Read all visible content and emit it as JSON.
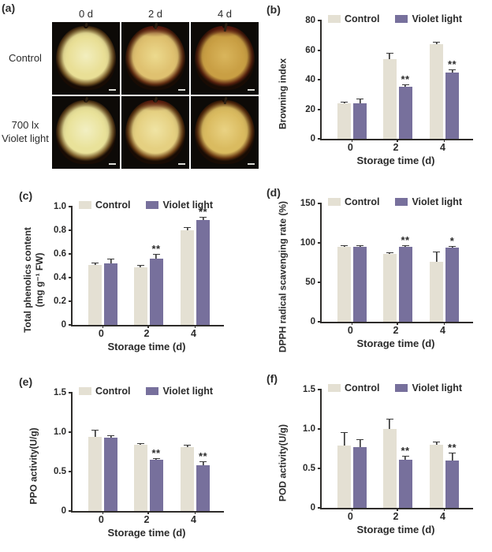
{
  "colors": {
    "control": "#e4e0d3",
    "violet": "#77709c",
    "axis": "#2e2c2a",
    "error_bar": "#3a3a3a",
    "photo_background": "#0d0a07"
  },
  "panel_a": {
    "label": "(a)",
    "col_headers": [
      "0 d",
      "2 d",
      "4 d"
    ],
    "rows": [
      {
        "label_lines": [
          "Control"
        ]
      },
      {
        "label_lines": [
          "700 lx",
          "Violet light"
        ]
      }
    ],
    "photos": [
      {
        "name": "control-0d",
        "flesh": "#f2eebe",
        "mid": "#e9df96",
        "skin": "#7c5c28",
        "stem": 5,
        "red_top": false
      },
      {
        "name": "control-2d",
        "flesh": "#ecda8e",
        "mid": "#dfc170",
        "skin": "#6e3415",
        "stem": 8,
        "red_top": true
      },
      {
        "name": "control-4d",
        "flesh": "#d9b55c",
        "mid": "#c99f44",
        "skin": "#5f2410",
        "stem": 11,
        "red_top": true
      },
      {
        "name": "violet-0d",
        "flesh": "#f2efc2",
        "mid": "#e9e29a",
        "skin": "#7c5c28",
        "stem": 7,
        "red_top": false
      },
      {
        "name": "violet-2d",
        "flesh": "#f0e4a4",
        "mid": "#e5d081",
        "skin": "#774818",
        "stem": 7,
        "red_top": true
      },
      {
        "name": "violet-4d",
        "flesh": "#e9d283",
        "mid": "#dabb60",
        "skin": "#693610",
        "stem": 9,
        "red_top": false
      }
    ],
    "has_scale_bars": true
  },
  "chart_data": [
    {
      "id": "b",
      "panel_label": "(b)",
      "type": "bar",
      "ylabel": "Browning index",
      "xlabel": "Storage time (d)",
      "categories": [
        "0",
        "2",
        "4"
      ],
      "ylim": [
        0,
        80
      ],
      "yticks": [
        0,
        20,
        40,
        60,
        80
      ],
      "ytick_labels": [
        "0",
        "20",
        "40",
        "60",
        "80"
      ],
      "legend_position": "top",
      "series": [
        {
          "name": "Control",
          "values": [
            24,
            54,
            64
          ],
          "errors": [
            0.6,
            3.5,
            1.2
          ]
        },
        {
          "name": "Violet light",
          "values": [
            24,
            35,
            45
          ],
          "errors": [
            2.8,
            1.5,
            1.5
          ]
        }
      ],
      "significance": [
        "",
        "**",
        "**"
      ]
    },
    {
      "id": "c",
      "panel_label": "(c)",
      "type": "bar",
      "ylabel": "Total phenolics content",
      "ylabel2": "(mg g⁻¹ FW)",
      "xlabel": "Storage time (d)",
      "categories": [
        "0",
        "2",
        "4"
      ],
      "ylim": [
        0,
        1.0
      ],
      "yticks": [
        0,
        0.2,
        0.4,
        0.6,
        0.8,
        1.0
      ],
      "ytick_labels": [
        "0",
        "0.2",
        "0.4",
        "0.6",
        "0.8",
        "1.0"
      ],
      "legend_position": "top",
      "series": [
        {
          "name": "Control",
          "values": [
            0.51,
            0.49,
            0.8
          ],
          "errors": [
            0.012,
            0.012,
            0.02
          ]
        },
        {
          "name": "Violet light",
          "values": [
            0.52,
            0.56,
            0.89
          ],
          "errors": [
            0.035,
            0.035,
            0.015
          ]
        }
      ],
      "significance": [
        "",
        "**",
        "**"
      ]
    },
    {
      "id": "d",
      "panel_label": "(d)",
      "type": "bar",
      "ylabel": "DPPH radical scavenging rate (%)",
      "xlabel": "Storage time (d)",
      "categories": [
        "0",
        "2",
        "4"
      ],
      "ylim": [
        0,
        150
      ],
      "yticks": [
        0,
        50,
        100,
        150
      ],
      "ytick_labels": [
        "0",
        "50",
        "100",
        "150"
      ],
      "legend_position": "top",
      "series": [
        {
          "name": "Control",
          "values": [
            95,
            86,
            76
          ],
          "errors": [
            1.5,
            1.5,
            12
          ]
        },
        {
          "name": "Violet light",
          "values": [
            95,
            95,
            94
          ],
          "errors": [
            1.5,
            1.5,
            1.5
          ]
        }
      ],
      "significance": [
        "",
        "**",
        "*"
      ]
    },
    {
      "id": "e",
      "panel_label": "(e)",
      "type": "bar",
      "ylabel": "PPO activity(U/g)",
      "xlabel": "Storage time (d)",
      "categories": [
        "0",
        "2",
        "4"
      ],
      "ylim": [
        0,
        1.5
      ],
      "yticks": [
        0,
        0.5,
        1.0,
        1.5
      ],
      "ytick_labels": [
        "0",
        "0.5",
        "1.0",
        "1.5"
      ],
      "legend_position": "top",
      "series": [
        {
          "name": "Control",
          "values": [
            0.94,
            0.84,
            0.81
          ],
          "errors": [
            0.08,
            0.015,
            0.02
          ]
        },
        {
          "name": "Violet light",
          "values": [
            0.93,
            0.65,
            0.58
          ],
          "errors": [
            0.02,
            0.012,
            0.04
          ]
        }
      ],
      "significance": [
        "",
        "**",
        "**"
      ]
    },
    {
      "id": "f",
      "panel_label": "(f)",
      "type": "bar",
      "ylabel": "POD activity(U/g)",
      "xlabel": "Storage time (d)",
      "categories": [
        "0",
        "2",
        "4"
      ],
      "ylim": [
        0,
        1.5
      ],
      "yticks": [
        0,
        0.5,
        1.0,
        1.5
      ],
      "ytick_labels": [
        "0",
        "0.5",
        "1.0",
        "1.5"
      ],
      "legend_position": "top",
      "series": [
        {
          "name": "Control",
          "values": [
            0.79,
            1.0,
            0.8
          ],
          "errors": [
            0.16,
            0.12,
            0.03
          ]
        },
        {
          "name": "Violet light",
          "values": [
            0.77,
            0.61,
            0.6
          ],
          "errors": [
            0.09,
            0.04,
            0.09
          ]
        }
      ],
      "significance": [
        "",
        "**",
        "**"
      ]
    }
  ]
}
